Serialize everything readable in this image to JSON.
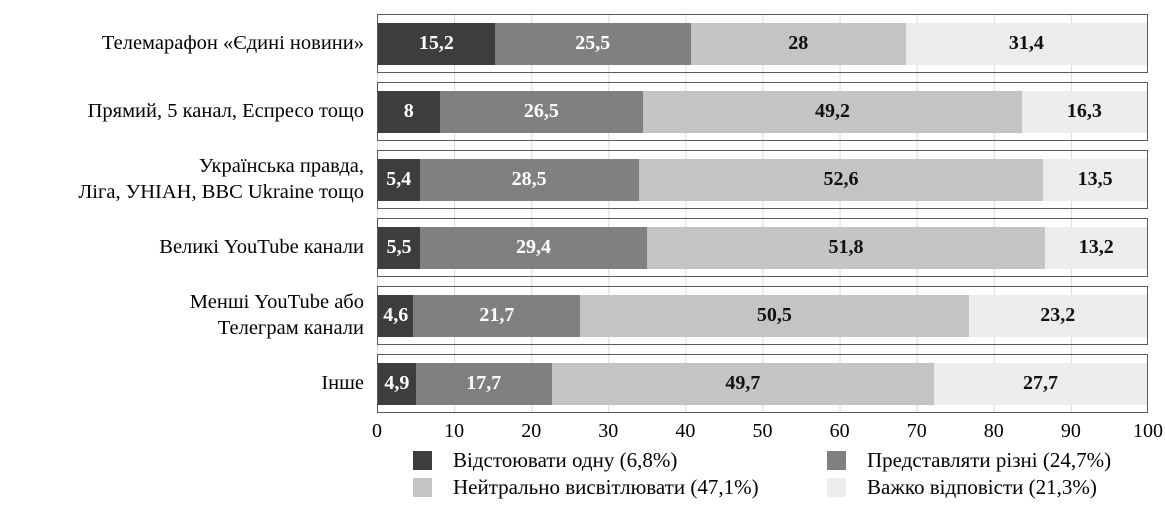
{
  "chart_data": {
    "type": "bar",
    "orientation": "horizontal",
    "stacked": true,
    "title": "",
    "xlabel": "",
    "ylabel": "",
    "xlim": [
      0,
      100
    ],
    "xticks": [
      "0",
      "10",
      "20",
      "30",
      "40",
      "50",
      "60",
      "70",
      "80",
      "90",
      "100"
    ],
    "grid": "vertical",
    "legend_position": "bottom",
    "legend_columns": 2,
    "categories": [
      "Телемарафон «Єдині новини»",
      "Прямий, 5 канал, Еспресо тощо",
      "Українська правда,\nЛіга, УНІАН, BBC Ukraine тощо",
      "Великі YouTube канали",
      "Менші YouTube або\nТелеграм канали",
      "Інше"
    ],
    "series": [
      {
        "name": "Відстоювати одну (6,8%)",
        "color": "#3d3d3d",
        "label_color": "#ffffff",
        "values": [
          15.2,
          8,
          5.4,
          5.5,
          4.6,
          4.9
        ],
        "value_labels": [
          "15,2",
          "8",
          "5,4",
          "5,5",
          "4,6",
          "4,9"
        ]
      },
      {
        "name": "Представляти різні (24,7%)",
        "color": "#808080",
        "label_color": "#ffffff",
        "values": [
          25.5,
          26.5,
          28.5,
          29.4,
          21.7,
          17.7
        ],
        "value_labels": [
          "25,5",
          "26,5",
          "28,5",
          "29,4",
          "21,7",
          "17,7"
        ]
      },
      {
        "name": "Нейтрально висвітлювати (47,1%)",
        "color": "#c4c4c4",
        "label_color": "#111111",
        "values": [
          28,
          49.2,
          52.6,
          51.8,
          50.5,
          49.7
        ],
        "value_labels": [
          "28",
          "49,2",
          "52,6",
          "51,8",
          "50,5",
          "49,7"
        ]
      },
      {
        "name": "Важко відповісти (21,3%)",
        "color": "#ececec",
        "label_color": "#111111",
        "values": [
          31.4,
          16.3,
          13.5,
          13.2,
          23.2,
          27.7
        ],
        "value_labels": [
          "31,4",
          "16,3",
          "13,5",
          "13,2",
          "23,2",
          "27,7"
        ]
      }
    ]
  }
}
